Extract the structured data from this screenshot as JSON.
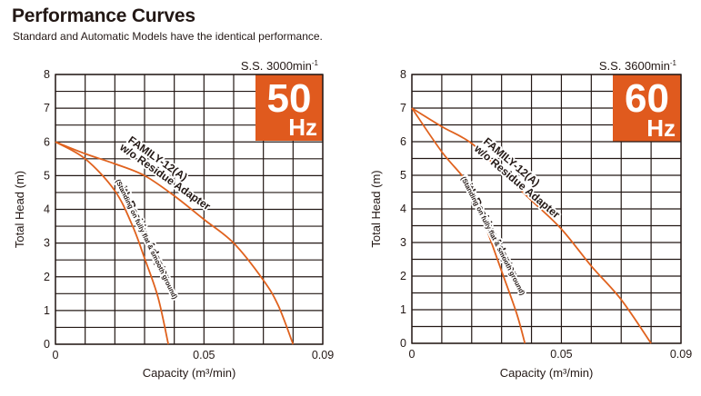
{
  "header": {
    "title": "Performance Curves",
    "subtitle": "Standard and Automatic Models have the identical performance."
  },
  "colors": {
    "curve": "#e0621e",
    "badge": "#e05a1e",
    "grid": "#231815"
  },
  "chart_data": [
    {
      "type": "line",
      "frequency_big": "50",
      "frequency_unit": "Hz",
      "speed_label": "S.S. 3000min",
      "speed_sup": "-1",
      "xlabel": "Capacity (m³/min)",
      "ylabel": "Total Head (m)",
      "xlim": [
        0,
        0.09
      ],
      "ylim": [
        0,
        8
      ],
      "xticks": [
        0,
        0.05,
        0.09
      ],
      "xtick_labels": [
        "0",
        "0.05",
        "0.09"
      ],
      "yticks": [
        0,
        1,
        2,
        3,
        4,
        5,
        6,
        7,
        8
      ],
      "ytick_labels": [
        "0",
        "1",
        "2",
        "3",
        "4",
        "5",
        "6",
        "7",
        "8"
      ],
      "grid": true,
      "grid_x_step": 0.01,
      "grid_y_step": 0.5,
      "series": [
        {
          "name": "FAMILY-12(A) w/o Residue Adapter",
          "label_line1": "FAMILY-12(A)",
          "label_line2": "w/o Residue Adapter",
          "x": [
            0,
            0.01,
            0.02,
            0.03,
            0.04,
            0.05,
            0.06,
            0.07,
            0.075,
            0.08
          ],
          "y": [
            6.0,
            5.65,
            5.35,
            5.0,
            4.4,
            3.7,
            3.0,
            1.9,
            1.15,
            0
          ]
        },
        {
          "name": "with Residue Adapter (Standing on fully flat & smooth ground)",
          "label_line1": "with Residue Adapter",
          "label_line2": "(Standing on fully flat & smooth ground)",
          "x": [
            0,
            0.01,
            0.02,
            0.026,
            0.03,
            0.0345,
            0.038
          ],
          "y": [
            6.0,
            5.5,
            4.55,
            3.5,
            2.55,
            1.4,
            0
          ]
        }
      ]
    },
    {
      "type": "line",
      "frequency_big": "60",
      "frequency_unit": "Hz",
      "speed_label": "S.S. 3600min",
      "speed_sup": "-1",
      "xlabel": "Capacity (m³/min)",
      "ylabel": "Total Head (m)",
      "xlim": [
        0,
        0.09
      ],
      "ylim": [
        0,
        8
      ],
      "xticks": [
        0,
        0.05,
        0.09
      ],
      "xtick_labels": [
        "0",
        "0.05",
        "0.09"
      ],
      "yticks": [
        0,
        1,
        2,
        3,
        4,
        5,
        6,
        7,
        8
      ],
      "ytick_labels": [
        "0",
        "1",
        "2",
        "3",
        "4",
        "5",
        "6",
        "7",
        "8"
      ],
      "grid": true,
      "grid_x_step": 0.01,
      "grid_y_step": 0.5,
      "series": [
        {
          "name": "FAMILY-12(A) w/o Residue Adapter",
          "label_line1": "FAMILY-12(A)",
          "label_line2": "w/o Residue Adapter",
          "x": [
            0,
            0.01,
            0.02,
            0.03,
            0.04,
            0.05,
            0.06,
            0.07,
            0.08
          ],
          "y": [
            7.0,
            6.45,
            5.95,
            5.1,
            4.25,
            3.4,
            2.3,
            1.3,
            0
          ]
        },
        {
          "name": "with Residue Adapter (Standing on fully flat & smooth ground)",
          "label_line1": "with Residue Adapter",
          "label_line2": "(Standing on fully flat & smooth ground)",
          "x": [
            0,
            0.01,
            0.02,
            0.025,
            0.03,
            0.035,
            0.0378
          ],
          "y": [
            7.0,
            5.7,
            4.6,
            3.4,
            2.15,
            0.9,
            0
          ]
        }
      ]
    }
  ]
}
